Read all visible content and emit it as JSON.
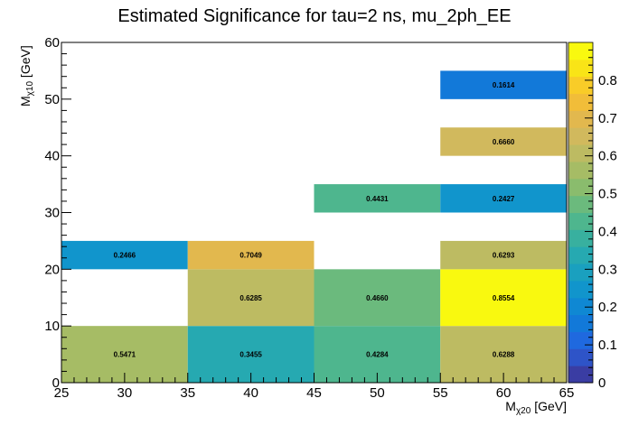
{
  "chart_data": {
    "type": "heatmap",
    "title": "Estimated Significance for tau=2 ns, mu_2ph_EE",
    "xlabel": {
      "main": "M",
      "sub": "χ20",
      "unit": " [GeV]"
    },
    "ylabel": {
      "main": "M",
      "sub": "χ10",
      "unit": " [GeV]"
    },
    "xlim": [
      25,
      65
    ],
    "ylim": [
      0,
      60
    ],
    "x_ticks": [
      25,
      30,
      35,
      40,
      45,
      50,
      55,
      60,
      65
    ],
    "y_ticks": [
      0,
      10,
      20,
      30,
      40,
      50,
      60
    ],
    "colorbar": {
      "min": 0,
      "max": 0.9,
      "ticks": [
        0,
        0.1,
        0.2,
        0.3,
        0.4,
        0.5,
        0.6,
        0.7,
        0.8
      ]
    },
    "cells": [
      {
        "x0": 25,
        "x1": 35,
        "y0": 0,
        "y1": 10,
        "value": 0.5471,
        "label": "0.5471"
      },
      {
        "x0": 35,
        "x1": 45,
        "y0": 0,
        "y1": 10,
        "value": 0.3455,
        "label": "0.3455"
      },
      {
        "x0": 45,
        "x1": 55,
        "y0": 0,
        "y1": 10,
        "value": 0.4284,
        "label": "0.4284"
      },
      {
        "x0": 55,
        "x1": 65,
        "y0": 0,
        "y1": 10,
        "value": 0.6288,
        "label": "0.6288"
      },
      {
        "x0": 35,
        "x1": 45,
        "y0": 10,
        "y1": 20,
        "value": 0.6285,
        "label": "0.6285"
      },
      {
        "x0": 45,
        "x1": 55,
        "y0": 10,
        "y1": 20,
        "value": 0.466,
        "label": "0.4660"
      },
      {
        "x0": 55,
        "x1": 65,
        "y0": 10,
        "y1": 20,
        "value": 0.8554,
        "label": "0.8554"
      },
      {
        "x0": 25,
        "x1": 35,
        "y0": 20,
        "y1": 25,
        "value": 0.2466,
        "label": "0.2466"
      },
      {
        "x0": 35,
        "x1": 45,
        "y0": 20,
        "y1": 25,
        "value": 0.7049,
        "label": "0.7049"
      },
      {
        "x0": 55,
        "x1": 65,
        "y0": 20,
        "y1": 25,
        "value": 0.6293,
        "label": "0.6293"
      },
      {
        "x0": 45,
        "x1": 55,
        "y0": 30,
        "y1": 35,
        "value": 0.4431,
        "label": "0.4431"
      },
      {
        "x0": 55,
        "x1": 65,
        "y0": 30,
        "y1": 35,
        "value": 0.2427,
        "label": "0.2427"
      },
      {
        "x0": 55,
        "x1": 65,
        "y0": 40,
        "y1": 45,
        "value": 0.666,
        "label": "0.6660"
      },
      {
        "x0": 55,
        "x1": 65,
        "y0": 50,
        "y1": 55,
        "value": 0.1614,
        "label": "0.1614"
      }
    ],
    "palette": [
      "#3a3da3",
      "#2e54c8",
      "#1f69df",
      "#1279d9",
      "#0f88d3",
      "#1195cc",
      "#1aa0bf",
      "#26a9b1",
      "#38b09f",
      "#4eb68e",
      "#6bba7d",
      "#8abc6d",
      "#a6bc65",
      "#bdbb62",
      "#d1b95d",
      "#e2b84e",
      "#f1bd39",
      "#f9cc28",
      "#f9e417",
      "#f9f90f"
    ],
    "grid": false
  }
}
